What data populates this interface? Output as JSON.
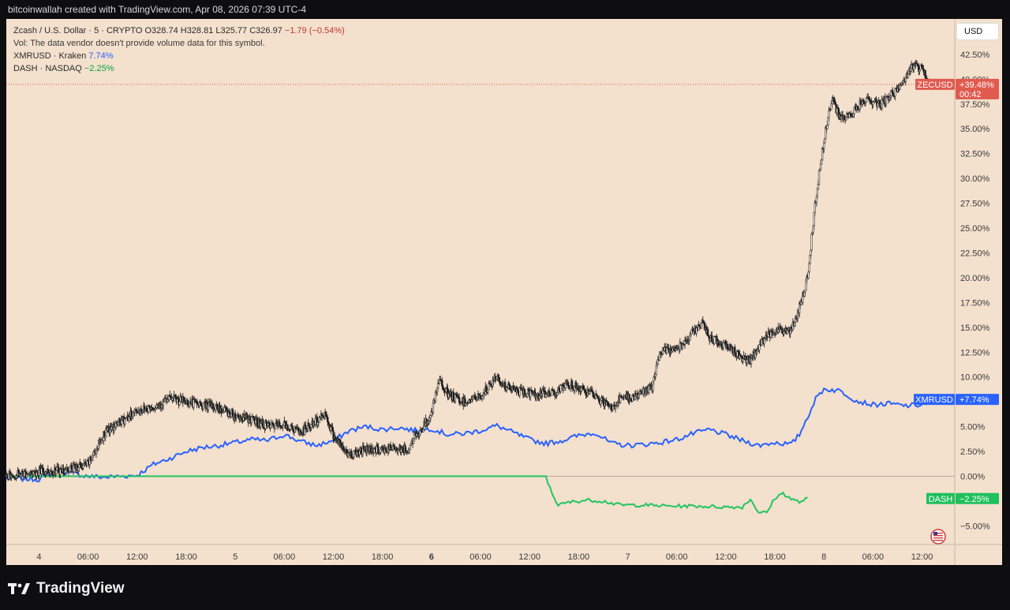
{
  "header": {
    "credit": "bitcoinwallah created with TradingView.com, Apr 08, 2026 07:39 UTC-4"
  },
  "legend": {
    "symbol": "Zcash / U.S. Dollar · 5 · CRYPTO",
    "open": "O328.74",
    "high": "H328.81",
    "low": "L325.77",
    "close": "C326.97",
    "change": "−1.79 (−0.54%)",
    "vol_note": "Vol: The data vendor doesn't provide volume data for this symbol.",
    "xmr_label": "XMRUSD · Kraken",
    "xmr_value": "7.74%",
    "dash_label": "DASH · NASDAQ",
    "dash_value": "−2.25%"
  },
  "currency_button": "USD",
  "brand": {
    "name": "TradingView"
  },
  "colors": {
    "zec": "#1a1a1a",
    "zec_up": "#1a1a1a",
    "xmr": "#2962ff",
    "dash": "#22c55e",
    "zec_tag": "#e05a4f",
    "xmr_tag": "#2962ff",
    "dash_tag": "#1fbf5c",
    "background": "#f3e0cd"
  },
  "chart_data": {
    "type": "line",
    "y_axis": {
      "unit": "percent",
      "range": [
        -7,
        45
      ],
      "scale": "linear",
      "position": "right"
    },
    "y_ticks": [
      "42.50%",
      "40.00%",
      "37.50%",
      "35.00%",
      "32.50%",
      "30.00%",
      "27.50%",
      "25.00%",
      "22.50%",
      "20.00%",
      "17.50%",
      "15.00%",
      "12.50%",
      "10.00%",
      "7.50%",
      "5.00%",
      "2.50%",
      "0.00%",
      "−5.00%"
    ],
    "y_tick_values": [
      42.5,
      40,
      37.5,
      35,
      32.5,
      30,
      27.5,
      25,
      22.5,
      20,
      17.5,
      15,
      12.5,
      10,
      7.5,
      5,
      2.5,
      0,
      -5
    ],
    "x_ticks": [
      "4",
      "06:00",
      "12:00",
      "18:00",
      "5",
      "06:00",
      "12:00",
      "18:00",
      "6",
      "06:00",
      "12:00",
      "18:00",
      "7",
      "06:00",
      "12:00",
      "18:00",
      "8",
      "06:00",
      "12:00"
    ],
    "x_tick_hours": [
      0,
      6,
      12,
      18,
      24,
      30,
      36,
      42,
      48,
      54,
      60,
      66,
      72,
      78,
      84,
      90,
      96,
      102,
      108
    ],
    "x_range_hours": [
      -4,
      112
    ],
    "grid": false,
    "series": [
      {
        "name": "ZECUSD",
        "style": "candles",
        "last_label": "+39.48%",
        "countdown": "00:42",
        "points": [
          [
            -4,
            0
          ],
          [
            0,
            0.5
          ],
          [
            3,
            0.6
          ],
          [
            6,
            1.2
          ],
          [
            8,
            4.3
          ],
          [
            10,
            5.5
          ],
          [
            12,
            6.6
          ],
          [
            14,
            7
          ],
          [
            16,
            7.8
          ],
          [
            18,
            7.5
          ],
          [
            20,
            7.2
          ],
          [
            22,
            6.9
          ],
          [
            24,
            6.1
          ],
          [
            26,
            5.7
          ],
          [
            28,
            5
          ],
          [
            30,
            5.2
          ],
          [
            32,
            4.4
          ],
          [
            34,
            5.6
          ],
          [
            35,
            6.3
          ],
          [
            36,
            4.2
          ],
          [
            37,
            2.9
          ],
          [
            38,
            2.2
          ],
          [
            40,
            2.8
          ],
          [
            42,
            2.6
          ],
          [
            44,
            2.9
          ],
          [
            45,
            2.5
          ],
          [
            46,
            4
          ],
          [
            47,
            5
          ],
          [
            48,
            6.2
          ],
          [
            49,
            9.8
          ],
          [
            50,
            8.2
          ],
          [
            52,
            7.5
          ],
          [
            54,
            8
          ],
          [
            56,
            10
          ],
          [
            57,
            9
          ],
          [
            59,
            8.5
          ],
          [
            61,
            8.2
          ],
          [
            63,
            8.5
          ],
          [
            65,
            9.2
          ],
          [
            67,
            8.5
          ],
          [
            69,
            7.5
          ],
          [
            70,
            6.8
          ],
          [
            71,
            7.7
          ],
          [
            73,
            8.1
          ],
          [
            75,
            9
          ],
          [
            76,
            12.5
          ],
          [
            78,
            12.9
          ],
          [
            80,
            14.5
          ],
          [
            81,
            15.5
          ],
          [
            82,
            14
          ],
          [
            84,
            13.2
          ],
          [
            86,
            12
          ],
          [
            87,
            11.5
          ],
          [
            88,
            13
          ],
          [
            89,
            14.2
          ],
          [
            90,
            14.8
          ],
          [
            92,
            14.6
          ],
          [
            93,
            17
          ],
          [
            94,
            20
          ],
          [
            95,
            28
          ],
          [
            96,
            34
          ],
          [
            97,
            38
          ],
          [
            98,
            36
          ],
          [
            99,
            36.2
          ],
          [
            101,
            38
          ],
          [
            103,
            37.5
          ],
          [
            105,
            39
          ],
          [
            106,
            40
          ],
          [
            107,
            41.5
          ],
          [
            108,
            41
          ],
          [
            109,
            39.48
          ]
        ]
      },
      {
        "name": "XMRUSD",
        "style": "line",
        "last_label": "+7.74%",
        "points": [
          [
            -4,
            -0.2
          ],
          [
            0,
            -0.3
          ],
          [
            2,
            0.6
          ],
          [
            4,
            0.3
          ],
          [
            6,
            0
          ],
          [
            8,
            -0.1
          ],
          [
            10,
            0
          ],
          [
            12,
            0.1
          ],
          [
            14,
            1.2
          ],
          [
            16,
            1.8
          ],
          [
            18,
            2.5
          ],
          [
            20,
            2.9
          ],
          [
            22,
            3.1
          ],
          [
            24,
            3.4
          ],
          [
            26,
            3.7
          ],
          [
            28,
            3.6
          ],
          [
            30,
            4.2
          ],
          [
            32,
            3.5
          ],
          [
            34,
            3.1
          ],
          [
            36,
            3.6
          ],
          [
            38,
            4.6
          ],
          [
            40,
            5
          ],
          [
            42,
            4.7
          ],
          [
            44,
            4.9
          ],
          [
            46,
            4.6
          ],
          [
            48,
            4.8
          ],
          [
            50,
            4.2
          ],
          [
            52,
            4.3
          ],
          [
            54,
            4.6
          ],
          [
            56,
            5.1
          ],
          [
            58,
            4.4
          ],
          [
            60,
            3.7
          ],
          [
            62,
            3.3
          ],
          [
            64,
            3.6
          ],
          [
            66,
            4.1
          ],
          [
            68,
            4.4
          ],
          [
            70,
            3.3
          ],
          [
            72,
            3.1
          ],
          [
            74,
            3.2
          ],
          [
            76,
            3.4
          ],
          [
            78,
            3.7
          ],
          [
            80,
            4.3
          ],
          [
            82,
            4.7
          ],
          [
            84,
            4.2
          ],
          [
            86,
            3.6
          ],
          [
            88,
            3.1
          ],
          [
            90,
            3.4
          ],
          [
            92,
            3.2
          ],
          [
            93,
            4.2
          ],
          [
            94,
            6
          ],
          [
            95,
            7.8
          ],
          [
            96,
            8.8
          ],
          [
            98,
            8.6
          ],
          [
            100,
            7.6
          ],
          [
            102,
            7.2
          ],
          [
            104,
            7.3
          ],
          [
            106,
            7.1
          ],
          [
            108,
            7.2
          ],
          [
            110,
            7.74
          ]
        ]
      },
      {
        "name": "DASH",
        "style": "line",
        "last_label": "−2.25%",
        "points": [
          [
            -4,
            0
          ],
          [
            62,
            0
          ],
          [
            62.6,
            -1.5
          ],
          [
            63.5,
            -2.9
          ],
          [
            65,
            -2.6
          ],
          [
            67,
            -2.4
          ],
          [
            69,
            -2.5
          ],
          [
            71,
            -2.9
          ],
          [
            74,
            -2.9
          ],
          [
            77,
            -3
          ],
          [
            80,
            -3
          ],
          [
            84,
            -3.1
          ],
          [
            86,
            -3.1
          ],
          [
            87,
            -2.3
          ],
          [
            88,
            -3.6
          ],
          [
            89,
            -3.7
          ],
          [
            90,
            -2.2
          ],
          [
            91,
            -1.7
          ],
          [
            92,
            -2.3
          ],
          [
            93,
            -2.6
          ],
          [
            94,
            -2.25
          ]
        ]
      }
    ],
    "annotations": [
      {
        "text": "ZECUSD",
        "value": "+39.48%"
      },
      {
        "text": "XMRUSD",
        "value": "+7.74%"
      },
      {
        "text": "DASH",
        "value": "−2.25%"
      }
    ]
  }
}
